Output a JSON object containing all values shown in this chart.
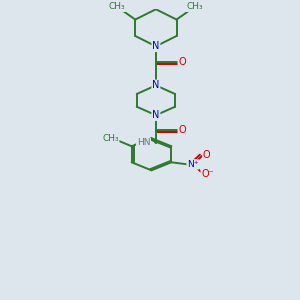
{
  "bg_color": "#dce6ec",
  "bond_color": "#2d7a2d",
  "N_color": "#0000cc",
  "O_color": "#cc0000",
  "H_color": "#707070",
  "lw": 1.4,
  "fs": 7.0,
  "xlim": [
    0,
    10
  ],
  "ylim": [
    0,
    14
  ],
  "figsize": [
    3.0,
    3.0
  ],
  "dpi": 100
}
